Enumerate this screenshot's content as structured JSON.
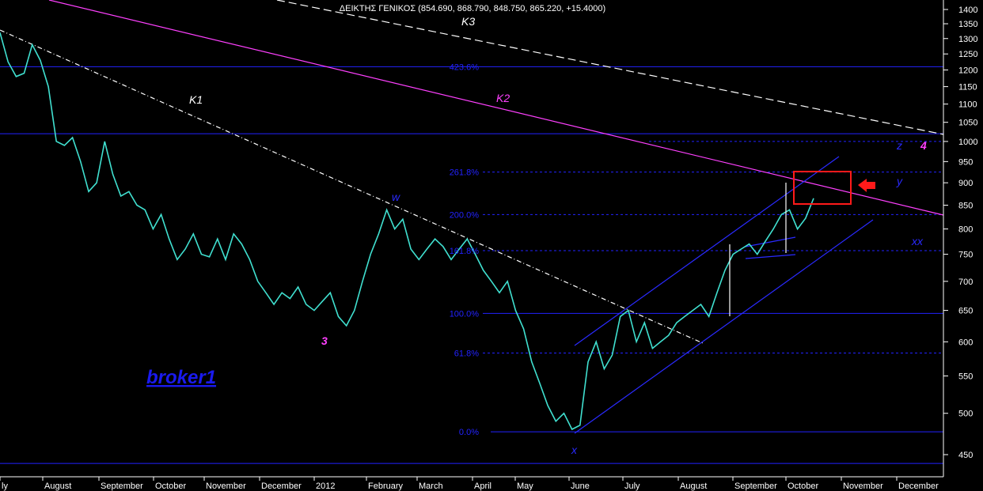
{
  "chart_data": {
    "type": "line",
    "title": "ΔΕΙΚΤΗΣ ΓΕΝΙΚΟΣ (854.690, 868.790, 848.750, 865.220, +15.4000)",
    "watermark": "broker1",
    "y_scale": "log",
    "ylim": [
      430,
      1420
    ],
    "y_ticks": [
      1400,
      1350,
      1300,
      1250,
      1200,
      1150,
      1100,
      1050,
      1000,
      950,
      900,
      850,
      800,
      750,
      700,
      650,
      600,
      550,
      500,
      450
    ],
    "x_labels": [
      "ly",
      "August",
      "September",
      "October",
      "November",
      "December",
      "2012",
      "February",
      "March",
      "April",
      "May",
      "June",
      "July",
      "August",
      "September",
      "October",
      "November",
      "December"
    ],
    "fib_levels": [
      {
        "label": "423.6%",
        "value": 1210
      },
      {
        "label": "261.8%",
        "value": 925
      },
      {
        "label": "200.0%",
        "value": 830
      },
      {
        "label": "161.8%",
        "value": 757
      },
      {
        "label": "100.0%",
        "value": 645
      },
      {
        "label": "61.8%",
        "value": 583
      },
      {
        "label": "0.0%",
        "value": 477
      }
    ],
    "horizontal_lines": [
      1020,
      440
    ],
    "series_close": [
      1320,
      1225,
      1180,
      1190,
      1280,
      1230,
      1150,
      1000,
      990,
      1010,
      950,
      880,
      900,
      1000,
      920,
      870,
      880,
      850,
      840,
      800,
      830,
      780,
      740,
      760,
      790,
      750,
      745,
      780,
      740,
      790,
      770,
      740,
      700,
      680,
      660,
      680,
      670,
      690,
      660,
      650,
      665,
      680,
      640,
      625,
      650,
      700,
      750,
      790,
      840,
      800,
      820,
      760,
      740,
      760,
      780,
      765,
      740,
      760,
      780,
      750,
      720,
      700,
      680,
      700,
      650,
      620,
      570,
      540,
      510,
      490,
      500,
      480,
      485,
      570,
      600,
      560,
      580,
      640,
      650,
      600,
      630,
      590,
      600,
      610,
      630,
      640,
      650,
      660,
      640,
      680,
      720,
      750,
      760,
      770,
      750,
      775,
      800,
      830,
      840,
      800,
      822,
      865
    ],
    "trendlines": [
      {
        "name": "K1",
        "color": "#ffffff",
        "style": "dash-dot",
        "p1": [
          1320,
          0
        ],
        "p2": [
          600,
          1
        ]
      },
      {
        "name": "K2",
        "color": "#ff40ff",
        "style": "solid",
        "p1": [
          1480,
          0
        ],
        "p2": [
          820,
          1
        ]
      },
      {
        "name": "K3",
        "color": "#ffffff",
        "style": "dashed",
        "p1": [
          1450,
          0
        ],
        "p2": [
          1010,
          1
        ]
      }
    ],
    "wave_labels": [
      {
        "text": "K1",
        "color": "#ffffff"
      },
      {
        "text": "K2",
        "color": "#ff40ff"
      },
      {
        "text": "K3",
        "color": "#ffffff"
      },
      {
        "text": "w",
        "color": "#2a2aff"
      },
      {
        "text": "3",
        "color": "#ff40ff"
      },
      {
        "text": "x",
        "color": "#2a2aff"
      },
      {
        "text": "y",
        "color": "#2a2aff"
      },
      {
        "text": "z",
        "color": "#2a2aff"
      },
      {
        "text": "4",
        "color": "#ff40ff"
      },
      {
        "text": "xx",
        "color": "#2a2aff"
      }
    ],
    "colors": {
      "background": "#000000",
      "price": "#40e0d0",
      "fib": "#2222ff",
      "highlight_box": "#ff1a1a",
      "arrow": "#ff1a1a",
      "axis_text": "#ffffff"
    }
  }
}
